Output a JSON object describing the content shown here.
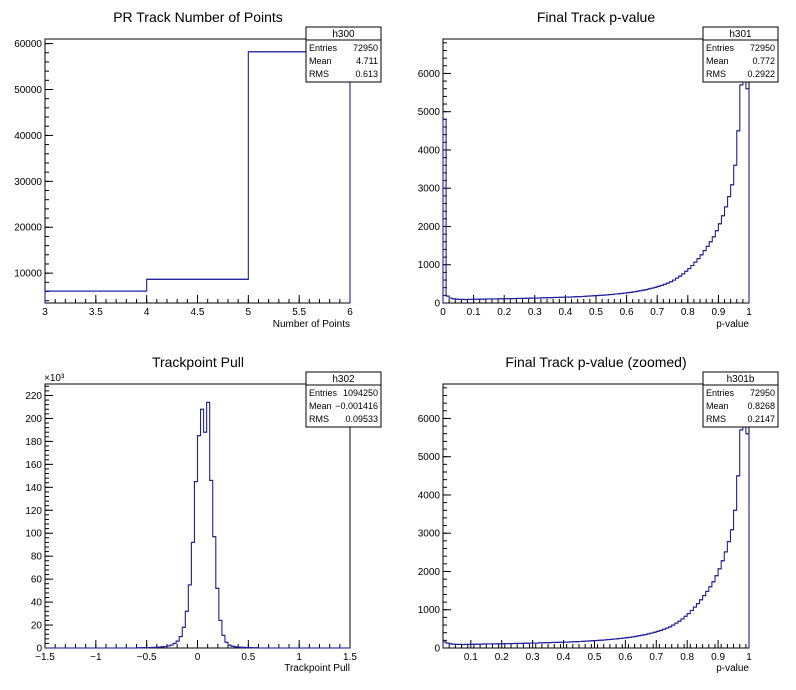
{
  "chart_data": [
    {
      "type": "histogram",
      "title": "PR Track Number of Points",
      "xlabel": "Number of Points",
      "ylabel": "",
      "xlim": [
        3,
        6
      ],
      "ylim": [
        3500,
        61000
      ],
      "xticks": [
        "3",
        "3.5",
        "4",
        "4.5",
        "5",
        "5.5",
        "6"
      ],
      "yticks": [
        "10000",
        "20000",
        "30000",
        "40000",
        "50000",
        "60000"
      ],
      "bins": [
        [
          3,
          4
        ],
        [
          4,
          5
        ],
        [
          5,
          6
        ]
      ],
      "values": [
        6100,
        8650,
        58200
      ],
      "stats": {
        "name": "h300",
        "entries_label": "Entries",
        "entries": "72950",
        "mean_label": "Mean",
        "mean": "4.711",
        "rms_label": "RMS",
        "rms": "0.613"
      }
    },
    {
      "type": "histogram",
      "title": "Final Track p-value",
      "xlabel": "p-value",
      "ylabel": "",
      "xlim": [
        0,
        1
      ],
      "ylim": [
        0,
        6900
      ],
      "xticks": [
        "0",
        "0.1",
        "0.2",
        "0.3",
        "0.4",
        "0.5",
        "0.6",
        "0.7",
        "0.8",
        "0.9",
        "1"
      ],
      "yticks": [
        "0",
        "1000",
        "2000",
        "3000",
        "4000",
        "5000",
        "6000"
      ],
      "nbins": 100,
      "values": [
        4800,
        180,
        130,
        110,
        100,
        95,
        95,
        90,
        95,
        95,
        100,
        100,
        100,
        100,
        105,
        105,
        105,
        105,
        110,
        110,
        110,
        115,
        115,
        115,
        120,
        120,
        120,
        125,
        125,
        130,
        130,
        130,
        135,
        135,
        140,
        140,
        145,
        145,
        150,
        150,
        155,
        155,
        160,
        165,
        165,
        170,
        175,
        180,
        185,
        190,
        195,
        200,
        205,
        210,
        220,
        225,
        235,
        240,
        250,
        260,
        270,
        280,
        290,
        305,
        320,
        335,
        350,
        370,
        390,
        410,
        435,
        460,
        490,
        520,
        555,
        600,
        650,
        700,
        760,
        830,
        900,
        980,
        1070,
        1160,
        1260,
        1370,
        1480,
        1600,
        1730,
        1890,
        2070,
        2280,
        2510,
        2780,
        3090,
        3600,
        4500,
        5700,
        6800,
        5600
      ],
      "stats": {
        "name": "h301",
        "entries_label": "Entries",
        "entries": "72950",
        "mean_label": "Mean",
        "mean": "0.772",
        "rms_label": "RMS",
        "rms": "0.2922"
      }
    },
    {
      "type": "histogram",
      "title": "Trackpoint Pull",
      "xlabel": "Trackpoint Pull",
      "ylabel": "",
      "y_multiplier": "×10³",
      "xlim": [
        -1.5,
        1.5
      ],
      "ylim": [
        0,
        230
      ],
      "xticks": [
        "−1.5",
        "−1",
        "−0.5",
        "0",
        "0.5",
        "1",
        "1.5"
      ],
      "yticks": [
        "0",
        "20",
        "40",
        "60",
        "80",
        "100",
        "120",
        "140",
        "160",
        "180",
        "200",
        "220"
      ],
      "nbins": 100,
      "values": [
        0,
        0,
        0,
        0,
        0,
        0,
        0,
        0,
        0,
        0,
        0,
        0,
        0,
        0,
        0,
        0,
        0,
        0,
        0,
        0,
        0,
        0,
        0,
        0,
        0,
        0,
        0,
        0,
        0,
        0,
        0.2,
        0.2,
        0.3,
        0.3,
        0.4,
        0.5,
        0.6,
        0.8,
        1.0,
        1.3,
        1.8,
        2.6,
        4,
        6,
        10,
        18,
        32,
        55,
        92,
        145,
        185,
        208,
        188,
        214,
        146,
        97,
        52,
        24,
        11,
        5,
        2.5,
        1.5,
        1.0,
        0.8,
        0.6,
        0.5,
        0.4,
        0.3,
        0.2,
        0.2,
        0,
        0,
        0,
        0,
        0,
        0,
        0,
        0,
        0,
        0,
        0,
        0,
        0,
        0,
        0,
        0,
        0,
        0,
        0,
        0,
        0,
        0,
        0,
        0,
        0,
        0,
        0,
        0,
        0,
        0
      ],
      "stats": {
        "name": "h302",
        "entries_label": "Entries",
        "entries": "1094250",
        "mean_label": "Mean",
        "mean": "−0.001416",
        "rms_label": "RMS",
        "rms": "0.09533"
      }
    },
    {
      "type": "histogram",
      "title": "Final Track p-value (zoomed)",
      "xlabel": "p-value",
      "ylabel": "",
      "xlim": [
        0.01,
        1
      ],
      "ylim": [
        0,
        6900
      ],
      "xticks": [
        "0.1",
        "0.2",
        "0.3",
        "0.4",
        "0.5",
        "0.6",
        "0.7",
        "0.8",
        "0.9",
        "1"
      ],
      "yticks": [
        "0",
        "1000",
        "2000",
        "3000",
        "4000",
        "5000",
        "6000"
      ],
      "nbins": 99,
      "values": [
        160,
        130,
        110,
        100,
        95,
        95,
        90,
        95,
        95,
        100,
        100,
        100,
        100,
        105,
        105,
        105,
        105,
        110,
        110,
        110,
        115,
        115,
        115,
        120,
        120,
        120,
        125,
        125,
        130,
        130,
        130,
        135,
        135,
        140,
        140,
        145,
        145,
        150,
        150,
        155,
        155,
        160,
        165,
        165,
        170,
        175,
        180,
        185,
        190,
        195,
        200,
        205,
        210,
        220,
        225,
        235,
        240,
        250,
        260,
        270,
        280,
        290,
        305,
        320,
        335,
        350,
        370,
        390,
        410,
        435,
        460,
        490,
        520,
        555,
        600,
        650,
        700,
        760,
        830,
        900,
        980,
        1070,
        1160,
        1260,
        1370,
        1480,
        1600,
        1730,
        1890,
        2070,
        2280,
        2510,
        2780,
        3090,
        3600,
        4500,
        5700,
        6800,
        5600
      ],
      "stats": {
        "name": "h301b",
        "entries_label": "Entries",
        "entries": "72950",
        "mean_label": "Mean",
        "mean": "0.8268",
        "rms_label": "RMS",
        "rms": "0.2147"
      }
    }
  ],
  "colors": {
    "line": "#1f1f9f",
    "axis": "#000000",
    "background": "#ffffff"
  }
}
